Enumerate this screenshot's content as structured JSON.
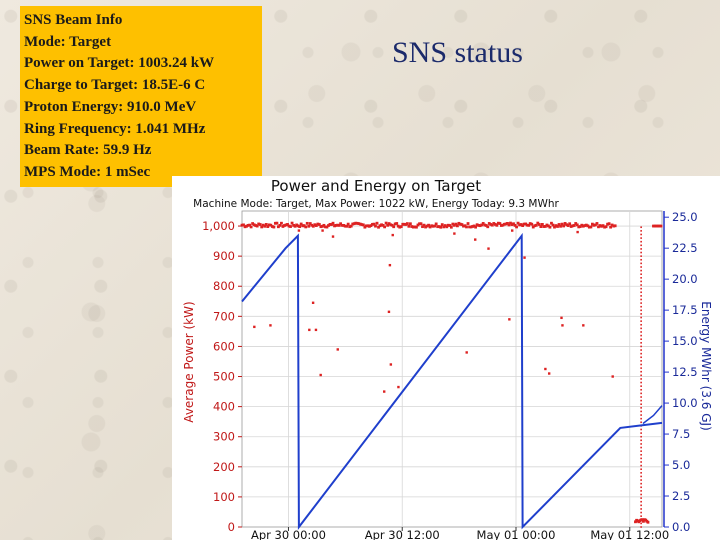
{
  "slide": {
    "title": "SNS status"
  },
  "info_panel": {
    "lines": [
      "SNS Beam Info",
      "Mode: Target",
      "Power on Target: 1003.24 kW",
      "Charge to Target: 18.5E-6 C",
      "Proton Energy: 910.0 MeV",
      "Ring Frequency: 1.041 MHz",
      "Beam Rate: 59.9 Hz",
      "MPS Mode: 1 mSec"
    ]
  },
  "colors": {
    "info_background": "#fec000",
    "power_series": "#dd2222",
    "energy_series": "#1f3fcc",
    "title_text": "#1b2a6b"
  },
  "chart_data": {
    "type": "line",
    "title": "Power and Energy on Target",
    "subtitle": "Machine Mode: Target, Max Power: 1022 kW, Energy Today: 9.3 MWhr",
    "ylabel": "Average Power (kW)",
    "y2label": "Energy MWhr (3.6 GJ)",
    "grid": true,
    "xlim_hours": [
      -4.9,
      39.4
    ],
    "ylim": [
      0,
      1050
    ],
    "y2lim": [
      0,
      25.5
    ],
    "x_ticks": [
      {
        "h": 0,
        "label": "Apr 30 00:00"
      },
      {
        "h": 12,
        "label": "Apr 30 12:00"
      },
      {
        "h": 24,
        "label": "May 01 00:00"
      },
      {
        "h": 36,
        "label": "May 01 12:00"
      }
    ],
    "y_ticks": [
      {
        "v": 0,
        "label": "0"
      },
      {
        "v": 100,
        "label": "100"
      },
      {
        "v": 200,
        "label": "200"
      },
      {
        "v": 300,
        "label": "300"
      },
      {
        "v": 400,
        "label": "400"
      },
      {
        "v": 500,
        "label": "500"
      },
      {
        "v": 600,
        "label": "600"
      },
      {
        "v": 700,
        "label": "700"
      },
      {
        "v": 800,
        "label": "800"
      },
      {
        "v": 900,
        "label": "900"
      },
      {
        "v": 1000,
        "label": "1,000"
      }
    ],
    "y2_ticks": [
      {
        "v": 0,
        "label": "0.0"
      },
      {
        "v": 2.5,
        "label": "2.5"
      },
      {
        "v": 5,
        "label": "5.0"
      },
      {
        "v": 7.5,
        "label": "7.5"
      },
      {
        "v": 10,
        "label": "10.0"
      },
      {
        "v": 12.5,
        "label": "12.5"
      },
      {
        "v": 15,
        "label": "15.0"
      },
      {
        "v": 17.5,
        "label": "17.5"
      },
      {
        "v": 20,
        "label": "20.0"
      },
      {
        "v": 22.5,
        "label": "22.5"
      },
      {
        "v": 25,
        "label": "25.0"
      }
    ],
    "series": [
      {
        "name": "Average Power (kW)",
        "axis": "left",
        "style": "points",
        "band": {
          "from_h": -4.9,
          "to_h": 34.6,
          "value": 1003
        },
        "tail_band": {
          "from_h": 38.5,
          "to_h": 39.4,
          "value": 1000
        },
        "drop_line": {
          "h": 37.2,
          "from": 0,
          "to": 1003
        },
        "low_cluster": {
          "from_h": 36.6,
          "to_h": 38.0,
          "value": 15
        },
        "outliers": [
          [
            -3.6,
            665
          ],
          [
            -1.9,
            670
          ],
          [
            1.1,
            985
          ],
          [
            1.6,
            1002
          ],
          [
            2.2,
            655
          ],
          [
            2.6,
            745
          ],
          [
            2.9,
            655
          ],
          [
            3.4,
            505
          ],
          [
            3.6,
            985
          ],
          [
            4.7,
            965
          ],
          [
            5.2,
            590
          ],
          [
            10.1,
            450
          ],
          [
            10.6,
            715
          ],
          [
            10.7,
            870
          ],
          [
            10.8,
            540
          ],
          [
            11.0,
            970
          ],
          [
            11.6,
            465
          ],
          [
            17.5,
            975
          ],
          [
            18.8,
            580
          ],
          [
            19.7,
            955
          ],
          [
            21.1,
            925
          ],
          [
            23.3,
            690
          ],
          [
            23.6,
            985
          ],
          [
            24.9,
            895
          ],
          [
            27.1,
            525
          ],
          [
            27.5,
            510
          ],
          [
            28.8,
            695
          ],
          [
            28.9,
            670
          ],
          [
            30.5,
            980
          ],
          [
            31.1,
            670
          ],
          [
            34.2,
            500
          ]
        ]
      },
      {
        "name": "Energy MWhr (3.6 GJ)",
        "axis": "right",
        "style": "line",
        "points": [
          [
            -4.9,
            18.2
          ],
          [
            -0.3,
            22.5
          ],
          [
            1.0,
            23.5
          ],
          [
            1.1,
            0.0
          ],
          [
            24.6,
            23.5
          ],
          [
            24.7,
            0.0
          ],
          [
            35.0,
            8.0
          ],
          [
            39.4,
            8.4
          ]
        ],
        "tail_points": [
          [
            37.4,
            8.35
          ],
          [
            38.5,
            9.0
          ],
          [
            39.4,
            9.8
          ]
        ]
      }
    ]
  }
}
